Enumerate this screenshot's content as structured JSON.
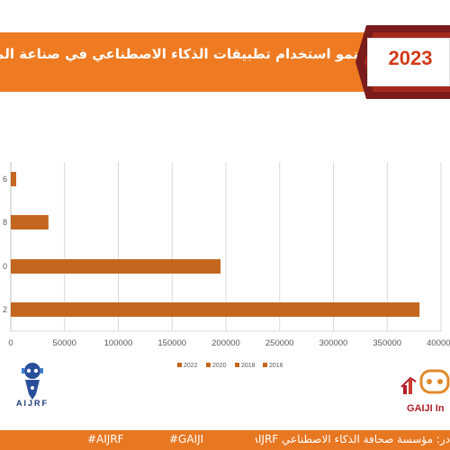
{
  "header": {
    "title": "نمو استخدام تطبيقات الذكاء الاصطناعي في صناعة المحتوى ع",
    "year": "2023"
  },
  "logos": {
    "left_text": "AIJRF",
    "right_text": "GAIJI In"
  },
  "footer": {
    "hashtag_1": "#AIJRF",
    "hashtag_2": "#GAIJI",
    "source": "در: مؤسسة صحافة الذكاء الاصطناعي AIJRF"
  },
  "colors": {
    "bar": "#c5661f",
    "header": "#ee7b22",
    "year": "#d23b1c"
  },
  "chart_data": {
    "type": "bar",
    "orientation": "horizontal",
    "categories": [
      "2016",
      "2018",
      "2020",
      "2022"
    ],
    "tick_labels_visible": [
      "6",
      "8",
      "0",
      "2"
    ],
    "values": [
      5000,
      35000,
      195000,
      380000
    ],
    "xlim": [
      0,
      400000
    ],
    "xticks": [
      0,
      50000,
      100000,
      150000,
      200000,
      250000,
      300000,
      350000,
      400000
    ],
    "xtick_labels": [
      "0",
      "50000",
      "100000",
      "150000",
      "200000",
      "250000",
      "300000",
      "350000",
      "400000"
    ],
    "legend": [
      "2022",
      "2020",
      "2018",
      "2016"
    ],
    "legend_position": "bottom",
    "grid": true
  }
}
